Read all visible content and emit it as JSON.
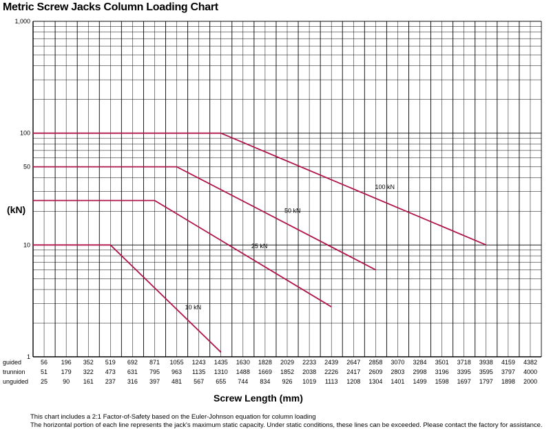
{
  "chart_data": {
    "type": "line",
    "title": "Metric Screw Jacks Column Loading Chart",
    "ylabel": "(kN)",
    "xlabel": "Screw Length (mm)",
    "yscale": "log",
    "ylim": [
      1,
      1000
    ],
    "y_ticks": [
      1,
      10,
      50,
      100,
      1000
    ],
    "y_tick_labels": [
      "1",
      "10",
      "50",
      "100",
      "1,000"
    ],
    "grid": true,
    "x_scale_rows": [
      {
        "label": "guided",
        "values": [
          "56",
          "196",
          "352",
          "519",
          "692",
          "871",
          "1055",
          "1243",
          "1435",
          "1630",
          "1828",
          "2029",
          "2233",
          "2439",
          "2647",
          "2858",
          "3070",
          "3284",
          "3501",
          "3718",
          "3938",
          "4159",
          "4382"
        ]
      },
      {
        "label": "trunnion",
        "values": [
          "51",
          "179",
          "322",
          "473",
          "631",
          "795",
          "963",
          "1135",
          "1310",
          "1488",
          "1669",
          "1852",
          "2038",
          "2226",
          "2417",
          "2609",
          "2803",
          "2998",
          "3196",
          "3395",
          "3595",
          "3797",
          "4000"
        ]
      },
      {
        "label": "unguided",
        "values": [
          "25",
          "90",
          "161",
          "237",
          "316",
          "397",
          "481",
          "567",
          "655",
          "744",
          "834",
          "926",
          "1019",
          "1113",
          "1208",
          "1304",
          "1401",
          "1499",
          "1598",
          "1697",
          "1797",
          "1898",
          "2000"
        ]
      }
    ],
    "series": [
      {
        "name": "100 kN",
        "x_col": [
          0,
          8,
          20
        ],
        "y": [
          100,
          100,
          10
        ]
      },
      {
        "name": "50 kN",
        "x_col": [
          0,
          6,
          15
        ],
        "y": [
          50,
          50,
          6
        ]
      },
      {
        "name": "25 kN",
        "x_col": [
          0,
          5,
          13
        ],
        "y": [
          25,
          25,
          2.8
        ]
      },
      {
        "name": "10 kN",
        "x_col": [
          0,
          3,
          8
        ],
        "y": [
          10,
          10,
          1.1
        ]
      }
    ],
    "notes": [
      "This chart includes a 2:1 Factor-of-Safety based on the Euler-Johnson equation for column loading",
      "The horizontal portion of each line represents the jack's maximum static capacity. Under static conditions, these lines can be exceeded. Please contact the factory for assistance."
    ],
    "line_color": "#b0134a"
  }
}
